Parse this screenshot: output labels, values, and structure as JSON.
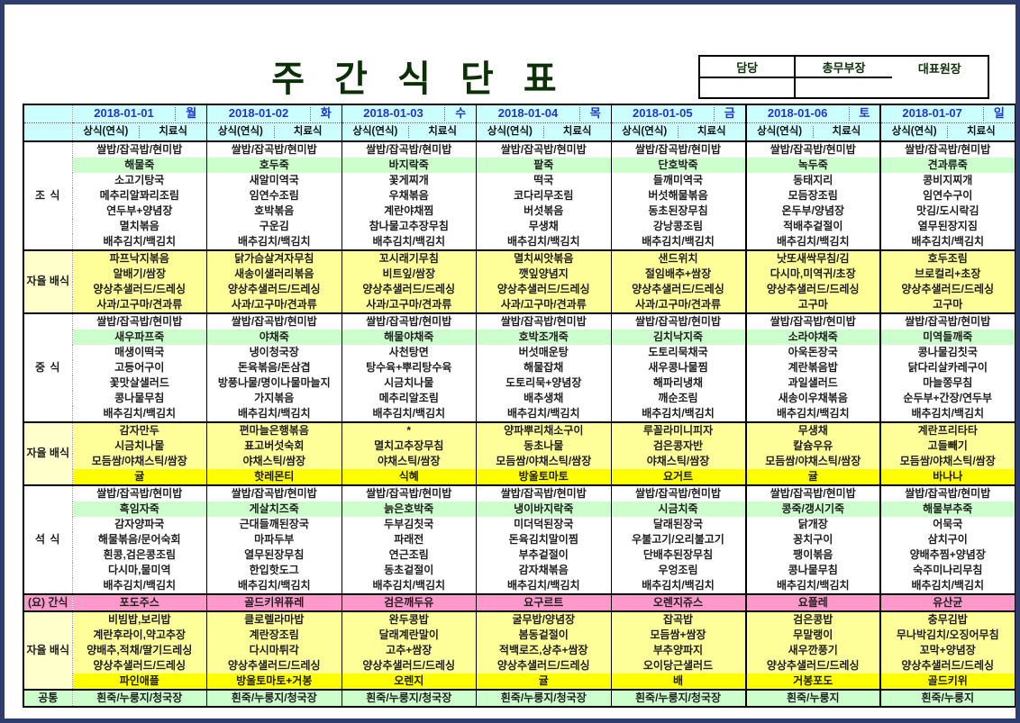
{
  "page": {
    "title": "주 간 식 단 표"
  },
  "approval": {
    "cells": [
      "담당",
      "총무부장",
      "대표원장"
    ]
  },
  "week": {
    "days": [
      {
        "date": "2018-01-01",
        "weekday": "월"
      },
      {
        "date": "2018-01-02",
        "weekday": "화"
      },
      {
        "date": "2018-01-03",
        "weekday": "수"
      },
      {
        "date": "2018-01-04",
        "weekday": "목"
      },
      {
        "date": "2018-01-05",
        "weekday": "금"
      },
      {
        "date": "2018-01-06",
        "weekday": "토"
      },
      {
        "date": "2018-01-07",
        "weekday": "일"
      }
    ],
    "sub_headers": [
      "상식(연식)",
      "치료식"
    ]
  },
  "colors": {
    "header_bg": "#CCFFFF",
    "porridge_bg": "#CCFFCC",
    "self_bg": "#FFFF99",
    "fruit_bg": "#FFFF00",
    "self_label_bg": "#FFFFCC",
    "snack_bg": "#FF99CC",
    "common_bg": "#CCFFCC",
    "highlight_text": "#FF0000",
    "date_text": "#2233CC",
    "snack_text": "#943634",
    "title_text": "#0B3005"
  },
  "sections": [
    {
      "id": "breakfast",
      "label": "조\n식",
      "kind": "meal",
      "row_styles": [
        "plain",
        "green",
        "plain",
        "red",
        "plain",
        "plain",
        "plain"
      ],
      "days": [
        [
          "쌀밥/잡곡밥/현미밥",
          "해물죽",
          "소고기탕국",
          "메추리알꽈리조림",
          "연두부+양념장",
          "멸치볶음",
          "배추김치/백김치"
        ],
        [
          "쌀밥/잡곡밥/현미밥",
          "호두죽",
          "새알미역국",
          "임연수조림",
          "호박볶음",
          "구운김",
          "배추김치/백김치"
        ],
        [
          "쌀밥/잡곡밥/현미밥",
          "바지락죽",
          "꽃게찌개",
          "우채볶음",
          "계란야채찜",
          "참나물고추장무침",
          "배추김치/백김치"
        ],
        [
          "쌀밥/잡곡밥/현미밥",
          "팥죽",
          "떡국",
          "코다리무조림",
          "버섯볶음",
          "무생채",
          "배추김치/백김치"
        ],
        [
          "쌀밥/잡곡밥/현미밥",
          "단호박죽",
          "들깨미역국",
          "버섯해물볶음",
          "동초된장무침",
          "강낭콩조림",
          "배추김치/백김치"
        ],
        [
          "쌀밥/잡곡밥/현미밥",
          "녹두죽",
          "동태지리",
          "모듬장조림",
          "온두부/양념장",
          "적배추겉절이",
          "배추김치/백김치"
        ],
        [
          "쌀밥/잡곡밥/현미밥",
          "견과류죽",
          "콩비지찌개",
          "임연수구이",
          "맛김/도시락김",
          "열무된장지짐",
          "배추김치/백김치"
        ]
      ]
    },
    {
      "id": "self1",
      "label": "자율\n배식",
      "kind": "self",
      "row_styles": [
        "yellow",
        "yellow",
        "yellow",
        "yellow"
      ],
      "days": [
        [
          "파프낙지볶음",
          "알배기/쌈장",
          "양상추샐러드/드레싱",
          "사과/고구마/견과류"
        ],
        [
          "닭가슴살겨자무침",
          "새송이샐러리볶음",
          "양상추샐러드/드레싱",
          "사과/고구마/견과류"
        ],
        [
          "꼬시래기무침",
          "비트잎/쌈장",
          "양상추샐러드/드레싱",
          "사과/고구마/견과류"
        ],
        [
          "멸치씨앗볶음",
          "깻잎양념지",
          "양상추샐러드/드레싱",
          "사과/고구마/견과류"
        ],
        [
          "샌드위치",
          "절임배추+쌈장",
          "양상추샐러드/드레싱",
          "사과/고구마/견과류"
        ],
        [
          "낫또새싹무침/김",
          "다시마,미역귀/초장",
          "양상추샐러드/드레싱",
          "고구마"
        ],
        [
          "호두조림",
          "브로컬리+초장",
          "양상추샐러드/드레싱",
          "고구마"
        ]
      ]
    },
    {
      "id": "lunch",
      "label": "중\n식",
      "kind": "meal",
      "row_styles": [
        "plain",
        "green",
        "plain",
        "red",
        "plain",
        "plain",
        "plain"
      ],
      "days": [
        [
          "쌀밥/잡곡밥/현미밥",
          "새우파프죽",
          "매생이떡국",
          "고등어구이",
          "꽃맛살샐러드",
          "콩나물무침",
          "배추김치/백김치"
        ],
        [
          "쌀밥/잡곡밥/현미밥",
          "야채죽",
          "냉이청국장",
          "돈육볶음/돈삼겹",
          "방풍나물/명이나물마늘지",
          "가지볶음",
          "배추김치/백김치"
        ],
        [
          "쌀밥/잡곡밥/현미밥",
          "해물야채죽",
          "사천탕면",
          "탕수육+뿌리탕수육",
          "시금치나물",
          "메추리알조림",
          "배추김치/백김치"
        ],
        [
          "쌀밥/잡곡밥/현미밥",
          "호박조개죽",
          "버섯매운탕",
          "해물잡채",
          "도토리묵+양념장",
          "배추생채",
          "배추김치/백김치"
        ],
        [
          "쌀밥/잡곡밥/현미밥",
          "김치낙지죽",
          "도토리묵채국",
          "새우콩나물찜",
          "해파리냉채",
          "깨순조림",
          "배추김치/백김치"
        ],
        [
          "쌀밥/잡곡밥/현미밥",
          "소라야채죽",
          "아욱돈장국",
          "계란볶음밥",
          "과일샐러드",
          "새송이우채볶음",
          "배추김치/백김치"
        ],
        [
          "쌀밥/잡곡밥/현미밥",
          "미역들깨죽",
          "콩나물김칫국",
          "닭다리살카레구이",
          "마늘쫑무침",
          "순두부+간장/연두부",
          "배추김치/백김치"
        ]
      ]
    },
    {
      "id": "self2",
      "label": "자율\n배식",
      "kind": "self",
      "row_styles": [
        "yellow",
        "yellow",
        "yellow",
        "bright"
      ],
      "days": [
        [
          "감자만두",
          "시금치나물",
          "모듬쌈/야채스틱/쌈장",
          "귤"
        ],
        [
          "편마늘은행볶음",
          "표고버섯숙회",
          "야채스틱/쌈장",
          "핫레몬티"
        ],
        [
          "*",
          "멸치고추장무침",
          "야채스틱/쌈장",
          "식혜"
        ],
        [
          "양파뿌리채소구이",
          "동초나물",
          "모듬쌈/야채스틱/쌈장",
          "방울토마토"
        ],
        [
          "루꼴라미니피자",
          "검은콩자반",
          "야채스틱/쌈장",
          "요거트"
        ],
        [
          "무생채",
          "칼슘우유",
          "모듬쌈/야채스틱/쌈장",
          "귤"
        ],
        [
          "계란프리타타",
          "고들빼기",
          "모듬쌈/야채스틱/쌈장",
          "바나나"
        ]
      ]
    },
    {
      "id": "dinner",
      "label": "석\n식",
      "kind": "meal",
      "row_styles": [
        "plain",
        "green",
        "plain",
        "red",
        "plain",
        "plain",
        "plain"
      ],
      "days": [
        [
          "쌀밥/잡곡밥/현미밥",
          "흑임자죽",
          "감자양파국",
          "해물볶음/문어숙회",
          "흰콩,검은콩조림",
          "다시마,물미역",
          "배추김치/백김치"
        ],
        [
          "쌀밥/잡곡밥/현미밥",
          "게살치즈죽",
          "근대들깨된장국",
          "마파두부",
          "열무된장무침",
          "한입핫도그",
          "배추김치/백김치"
        ],
        [
          "쌀밥/잡곡밥/현미밥",
          "늙은호박죽",
          "두부김칫국",
          "파래전",
          "연근조림",
          "동초겉절이",
          "배추김치/백김치"
        ],
        [
          "쌀밥/잡곡밥/현미밥",
          "냉이바지락죽",
          "미더덕된장국",
          "돈육김치말이찜",
          "부추겉절이",
          "감자채볶음",
          "배추김치/백김치"
        ],
        [
          "쌀밥/잡곡밥/현미밥",
          "시금치죽",
          "달래된장국",
          "우불고기/오리불고기",
          "단배추된장무침",
          "우엉조림",
          "배추김치/백김치"
        ],
        [
          "쌀밥/잡곡밥/현미밥",
          "콩죽/갱시기죽",
          "닭개장",
          "꽁치구이",
          "팽이볶음",
          "콩나물무침",
          "배추김치/백김치"
        ],
        [
          "쌀밥/잡곡밥/현미밥",
          "해물부추죽",
          "어묵국",
          "삼치구이",
          "양배추찜+양념장",
          "숙주미나리무침",
          "배추김치/백김치"
        ]
      ]
    },
    {
      "id": "snack",
      "label": "(요) 간식",
      "kind": "snack",
      "row_styles": [
        "pink"
      ],
      "days": [
        [
          "포도주스"
        ],
        [
          "골드키위퓨레"
        ],
        [
          "검은깨두유"
        ],
        [
          "요구르트"
        ],
        [
          "오렌지쥬스"
        ],
        [
          "요플레"
        ],
        [
          "유산균"
        ]
      ]
    },
    {
      "id": "self3",
      "label": "자율\n배식",
      "kind": "self",
      "row_styles": [
        "yellow",
        "yellow",
        "yellow",
        "yellow",
        "bright"
      ],
      "days": [
        [
          "비빔밥,보리밥",
          "계란후라이,약고추장",
          "양배추,적채/딸기드레싱",
          "양상추샐러드/드레싱",
          "파인애플"
        ],
        [
          "클로렐라마밥",
          "계란장조림",
          "다시마튀각",
          "양상추샐러드/드레싱",
          "방울토마토+거봉"
        ],
        [
          "완두콩밥",
          "달래계란말이",
          "고추+쌈장",
          "양상추샐러드/드레싱",
          "오렌지"
        ],
        [
          "굴무밥/양념장",
          "봄동겉절이",
          "적백로즈,상추+쌈장",
          "양상추샐러드/드레싱",
          "귤"
        ],
        [
          "잡곡밥",
          "모듬쌈+쌈장",
          "부추양파지",
          "오이당근샐러드",
          "배"
        ],
        [
          "검은콩밥",
          "무말랭이",
          "새우깐풍기",
          "양상추샐러드/드레싱",
          "거봉포도"
        ],
        [
          "충무김밥",
          "무나박김치/오징어무침",
          "꼬막+양념장",
          "양상추샐러드/드레싱",
          "골드키위"
        ]
      ]
    },
    {
      "id": "common",
      "label": "공통",
      "kind": "common",
      "row_styles": [
        "mint"
      ],
      "days": [
        [
          "흰죽/누룽지/청국장"
        ],
        [
          "흰죽/누룽지/청국장"
        ],
        [
          "흰죽/누룽지/청국장"
        ],
        [
          "흰죽/누룽지/청국장"
        ],
        [
          "흰죽/누룽지/청국장"
        ],
        [
          "흰죽/누룽지"
        ],
        [
          "흰죽/누룽지"
        ]
      ]
    }
  ]
}
